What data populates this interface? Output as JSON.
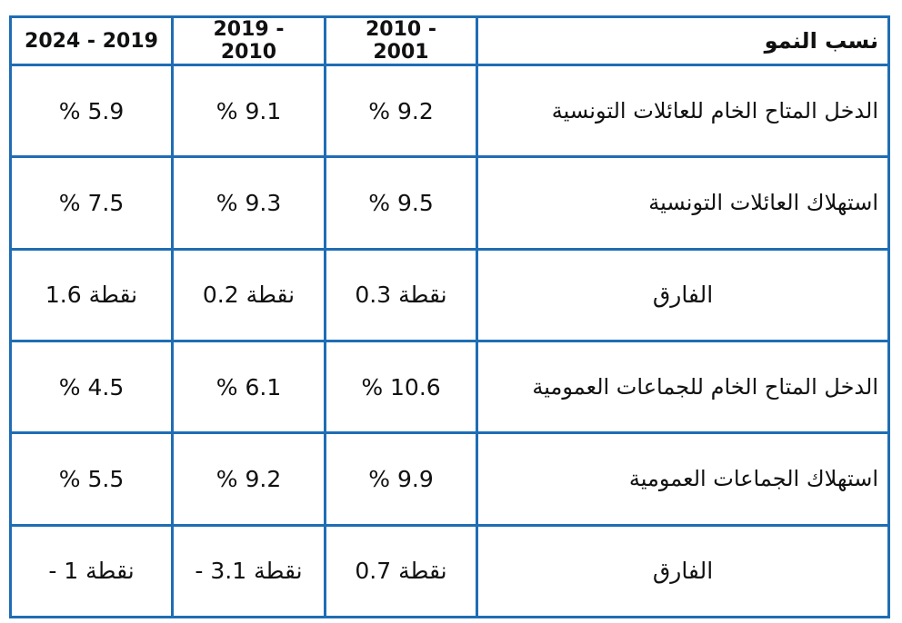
{
  "table": {
    "header": [
      "نسب النمو",
      "2010 - 2001",
      "2019 - 2010",
      "2024 - 2019"
    ],
    "rows": [
      [
        "الدخل المتاح الخام للعائلات التونسية",
        "% 9.2",
        "% 9.1",
        "% 5.9"
      ],
      [
        "استهلاك العائلات التونسية",
        "% 9.5",
        "% 9.3",
        "% 7.5"
      ],
      [
        "الفارق",
        "0.3 نقطة",
        "0.2 نقطة",
        "1.6 نقطة"
      ],
      [
        "الدخل المتاح الخام للجماعات العمومية",
        "% 10.6",
        "% 6.1",
        "% 4.5"
      ],
      [
        "استهلاك الجماعات العمومية",
        "% 9.9",
        "% 9.2",
        "% 5.5"
      ],
      [
        "الفارق",
        "0.7 نقطة",
        "- 3.1 نقطة",
        "- 1 نقطة"
      ]
    ]
  }
}
